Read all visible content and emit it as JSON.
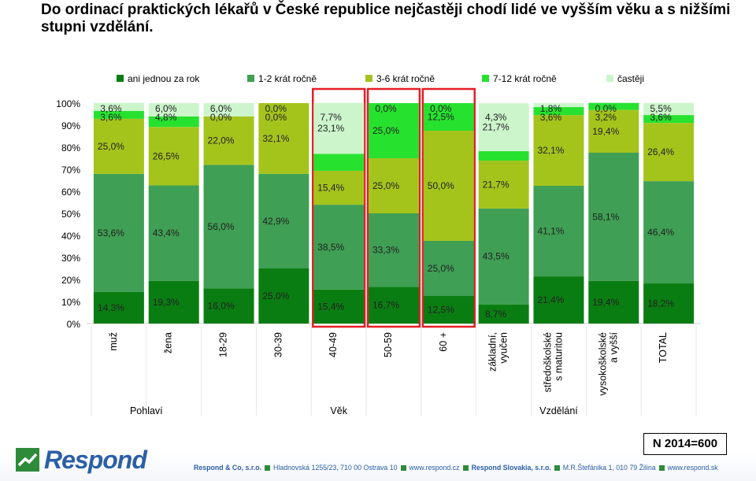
{
  "title": "Do ordinací praktických lékařů v České republice nejčastěji chodí lidé ve vyšším věku a s nižšími stupni vzdělání.",
  "chart_data": {
    "type": "bar",
    "stacked": true,
    "title": "Do ordinací praktických lékařů v České republice nejčastěji chodí lidé ve vyšším věku a s nižšími stupni vzdělání.",
    "categories": [
      "muž",
      "žena",
      "18-29",
      "30-39",
      "40-49",
      "50-59",
      "60 +",
      "základní, vyučen",
      "středoškolské s maturitou",
      "vysokoškolské a vyšší",
      "TOTAL"
    ],
    "groups": [
      {
        "label": "Pohlaví",
        "categories": [
          "muž",
          "žena"
        ]
      },
      {
        "label": "Věk",
        "categories": [
          "18-29",
          "30-39",
          "40-49",
          "50-59",
          "60 +"
        ]
      },
      {
        "label": "Vzdělání",
        "categories": [
          "základní, vyučen",
          "středoškolské s maturitou",
          "vysokoškolské a vyšší"
        ]
      }
    ],
    "series": [
      {
        "name": "ani jednou za rok",
        "color": "#0a7d12",
        "values": [
          14.3,
          19.3,
          16.0,
          25.0,
          15.4,
          16.7,
          12.5,
          8.7,
          21.4,
          19.4,
          18.2
        ]
      },
      {
        "name": "1-2 krát ročně",
        "color": "#3f9f54",
        "values": [
          53.6,
          43.4,
          56.0,
          42.9,
          38.5,
          33.3,
          25.0,
          43.5,
          41.1,
          58.1,
          46.4
        ]
      },
      {
        "name": "3-6 krát ročně",
        "color": "#a4c41c",
        "values": [
          25.0,
          26.5,
          22.0,
          32.1,
          15.4,
          25.0,
          50.0,
          21.7,
          32.1,
          19.4,
          26.4
        ]
      },
      {
        "name": "7-12 krát ročně",
        "color": "#27e12f",
        "values": [
          3.6,
          4.8,
          0.0,
          0.0,
          7.7,
          25.0,
          12.5,
          4.3,
          3.6,
          3.2,
          3.6
        ]
      },
      {
        "name": "častěji",
        "color": "#ccf5cc",
        "values": [
          3.6,
          6.0,
          6.0,
          0.0,
          23.1,
          0.0,
          0.0,
          21.7,
          1.8,
          0.0,
          5.5
        ]
      }
    ],
    "value_labels": [
      [
        "14,3%",
        "19,3%",
        "16,0%",
        "25,0%",
        "15,4%",
        "16,7%",
        "12,5%",
        "8,7%",
        "21,4%",
        "19,4%",
        "18,2%"
      ],
      [
        "53,6%",
        "43,4%",
        "56,0%",
        "42,9%",
        "38,5%",
        "33,3%",
        "25,0%",
        "43,5%",
        "41,1%",
        "58,1%",
        "46,4%"
      ],
      [
        "25,0%",
        "26,5%",
        "22,0%",
        "32,1%",
        "15,4%",
        "25,0%",
        "50,0%",
        "21,7%",
        "32,1%",
        "19,4%",
        "26,4%"
      ],
      [
        "3,6%",
        "4,8%",
        "0,0%",
        "0,0%",
        "7,7%",
        "25,0%",
        "12,5%",
        "4,3%",
        "3,6%",
        "3,2%",
        "3,6%"
      ],
      [
        "3,6%",
        "6,0%",
        "6,0%",
        "0,0%",
        "23,1%",
        "0,0%",
        "0,0%",
        "21,7%",
        "1,8%",
        "0,0%",
        "5,5%"
      ]
    ],
    "y_ticks": [
      "0%",
      "10%",
      "20%",
      "30%",
      "40%",
      "50%",
      "60%",
      "70%",
      "80%",
      "90%",
      "100%"
    ],
    "ylim": [
      0,
      100
    ],
    "highlighted_categories": [
      "40-49",
      "50-59",
      "60 +"
    ],
    "legend_position": "top"
  },
  "n_label": "N 2014=600",
  "logo_text": "Respond",
  "footer": {
    "company1": "Respond & Co, s.r.o.",
    "address1": "Hladnovská 1255/23, 710 00  Ostrava 10",
    "web1": "www.respond.cz",
    "company2": "Respond Slovakia, s.r.o.",
    "address2": "M.R.Štefánika 1, 010 79  Žilina",
    "web2": "www.respond.sk"
  },
  "colors": {
    "footer_blue": "#2b5fa6",
    "highlight_red": "#e41e26"
  }
}
